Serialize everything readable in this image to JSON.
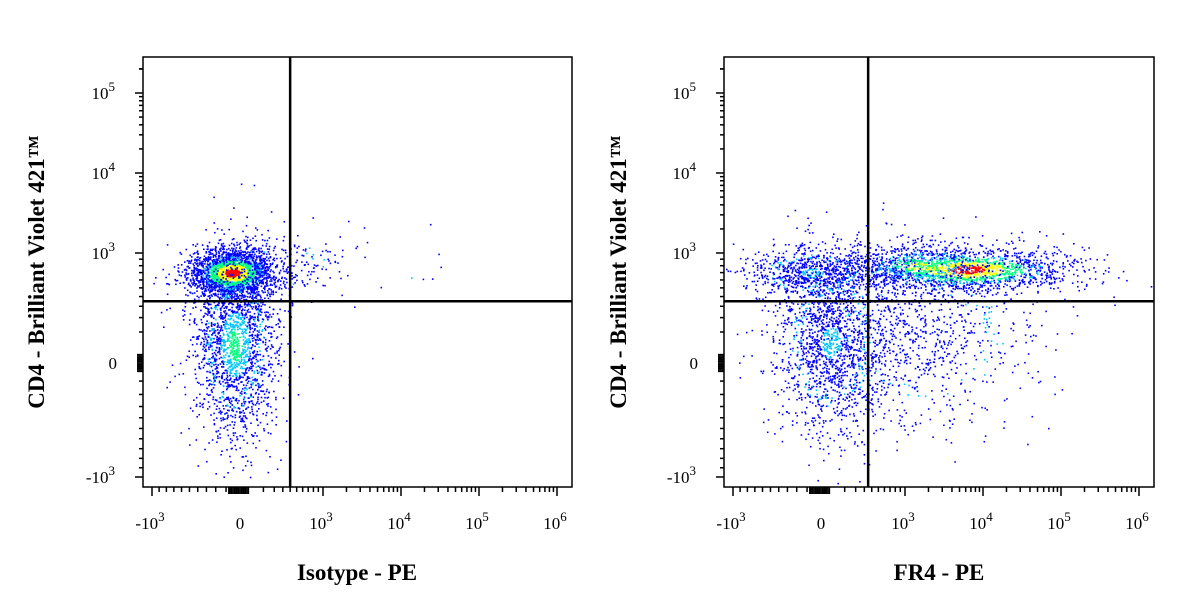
{
  "chart_data": [
    {
      "type": "scatter",
      "style": "flow-cytometry-density-dot-plot",
      "xlabel": "Isotype - PE",
      "ylabel": "CD4 - Brilliant Violet 421™",
      "x_scale": "biexponential",
      "y_scale": "biexponential",
      "xlim": [
        -2000,
        1500000
      ],
      "ylim": [
        -1500,
        250000
      ],
      "x_ticks": [
        {
          "value": -1000,
          "base": "-10",
          "exp": "3"
        },
        {
          "value": 0,
          "base": "0",
          "exp": ""
        },
        {
          "value": 1000,
          "base": "10",
          "exp": "3"
        },
        {
          "value": 10000,
          "base": "10",
          "exp": "4"
        },
        {
          "value": 100000,
          "base": "10",
          "exp": "5"
        },
        {
          "value": 1000000,
          "base": "10",
          "exp": "6"
        }
      ],
      "y_ticks": [
        {
          "value": -1000,
          "base": "-10",
          "exp": "3"
        },
        {
          "value": 0,
          "base": "0",
          "exp": ""
        },
        {
          "value": 1000,
          "base": "10",
          "exp": "3"
        },
        {
          "value": 10000,
          "base": "10",
          "exp": "4"
        },
        {
          "value": 100000,
          "base": "10",
          "exp": "5"
        }
      ],
      "quadrant_gate": {
        "x": 400,
        "y": 350
      },
      "density_colors": [
        "#0000ff",
        "#00c8ff",
        "#00ff7f",
        "#ffff00",
        "#ff0000"
      ],
      "populations": [
        {
          "x_center": -50,
          "y_center": 700,
          "x_spread": 0.2,
          "y_spread": 0.11,
          "count": 2300,
          "peak": 4
        },
        {
          "x_center": -30,
          "y_center": 40,
          "x_spread": 0.19,
          "y_spread": 0.42,
          "count": 1900,
          "peak": 2
        },
        {
          "x_center": 300,
          "y_center": 800,
          "x_spread": 0.28,
          "y_spread": 0.15,
          "count": 140,
          "peak": 0
        },
        {
          "x_center": 4000,
          "y_center": 900,
          "x_spread": 0.6,
          "y_spread": 0.18,
          "count": 20,
          "peak": 0
        }
      ]
    },
    {
      "type": "scatter",
      "style": "flow-cytometry-density-dot-plot",
      "xlabel": "FR4 - PE",
      "ylabel": "CD4 - Brilliant Violet 421™",
      "x_scale": "biexponential",
      "y_scale": "biexponential",
      "xlim": [
        -2000,
        1500000
      ],
      "ylim": [
        -1500,
        250000
      ],
      "x_ticks": [
        {
          "value": -1000,
          "base": "-10",
          "exp": "3"
        },
        {
          "value": 0,
          "base": "0",
          "exp": ""
        },
        {
          "value": 1000,
          "base": "10",
          "exp": "3"
        },
        {
          "value": 10000,
          "base": "10",
          "exp": "4"
        },
        {
          "value": 100000,
          "base": "10",
          "exp": "5"
        },
        {
          "value": 1000000,
          "base": "10",
          "exp": "6"
        }
      ],
      "y_ticks": [
        {
          "value": -1000,
          "base": "-10",
          "exp": "3"
        },
        {
          "value": 0,
          "base": "0",
          "exp": ""
        },
        {
          "value": 1000,
          "base": "10",
          "exp": "3"
        },
        {
          "value": 10000,
          "base": "10",
          "exp": "4"
        },
        {
          "value": 100000,
          "base": "10",
          "exp": "5"
        }
      ],
      "quadrant_gate": {
        "x": 350,
        "y": 350
      },
      "density_colors": [
        "#0000ff",
        "#00c8ff",
        "#00ff7f",
        "#ffff00",
        "#ff0000"
      ],
      "populations": [
        {
          "x_center": 6000,
          "y_center": 750,
          "x_spread": 0.5,
          "y_spread": 0.1,
          "count": 1600,
          "peak": 4
        },
        {
          "x_center": 1500,
          "y_center": 800,
          "x_spread": 0.35,
          "y_spread": 0.1,
          "count": 500,
          "peak": 3
        },
        {
          "x_center": -60,
          "y_center": 700,
          "x_spread": 0.3,
          "y_spread": 0.12,
          "count": 700,
          "peak": 1
        },
        {
          "x_center": 20,
          "y_center": 50,
          "x_spread": 0.26,
          "y_spread": 0.42,
          "count": 1500,
          "peak": 1
        },
        {
          "x_center": 1500,
          "y_center": 80,
          "x_spread": 0.55,
          "y_spread": 0.4,
          "count": 900,
          "peak": 0
        }
      ]
    }
  ]
}
